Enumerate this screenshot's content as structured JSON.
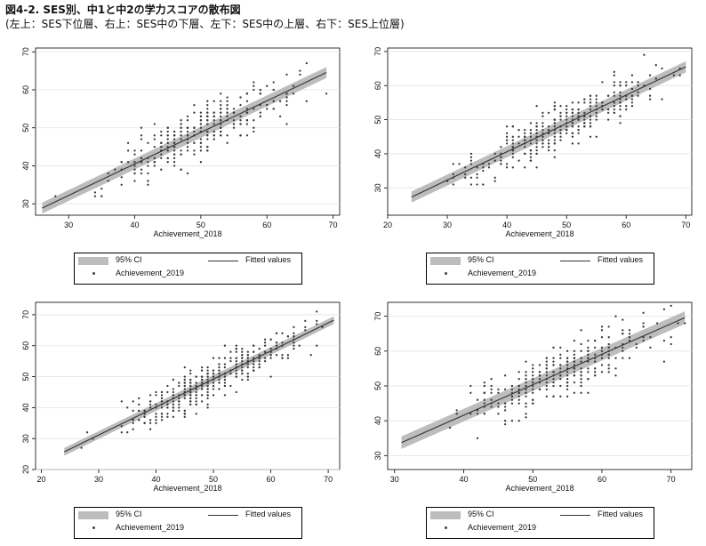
{
  "figure": {
    "title": "図4-2. SES別、中1と中2の学力スコアの散布図",
    "subtitle": "(左上：SES下位層、右上：SES中の下層、左下：SES中の上層、右下：SES上位層)"
  },
  "legend": {
    "ci_label": "95% CI",
    "fit_label": "Fitted values",
    "scatter_label": "Achievement_2019"
  },
  "colors": {
    "points": "#3a3a3a",
    "ci_band": "#bdbdbd",
    "fit_line": "#333333",
    "plot_bg": "#ffffff",
    "outer_bg": "#ffffff"
  },
  "chart_data": [
    {
      "id": "top-left",
      "type": "scatter",
      "xlabel": "Achievement_2018",
      "ylabel": "",
      "xlim": [
        25,
        71
      ],
      "ylim": [
        27,
        71
      ],
      "xticks": [
        30,
        40,
        50,
        60,
        70
      ],
      "yticks": [
        30,
        40,
        50,
        60,
        70
      ],
      "fit": {
        "x0": 26,
        "x1": 69,
        "slope": 0.83,
        "intercept": 7.3,
        "ci": 0.8
      },
      "n_points": 330,
      "noise": 3.4,
      "seed": 11,
      "points_xrange": [
        26,
        69
      ],
      "grid": true
    },
    {
      "id": "top-right",
      "type": "scatter",
      "xlabel": "Achievement_2018",
      "ylabel": "",
      "xlim": [
        20,
        71
      ],
      "ylim": [
        22,
        71
      ],
      "xticks": [
        20,
        30,
        40,
        50,
        60,
        70
      ],
      "yticks": [
        30,
        40,
        50,
        60,
        70
      ],
      "fit": {
        "x0": 24,
        "x1": 70,
        "slope": 0.83,
        "intercept": 7.4,
        "ci": 0.9
      },
      "n_points": 360,
      "noise": 3.6,
      "seed": 23,
      "points_xrange": [
        24,
        70
      ],
      "grid": true
    },
    {
      "id": "bottom-left",
      "type": "scatter",
      "xlabel": "Achievement_2018",
      "ylabel": "",
      "xlim": [
        19,
        72
      ],
      "ylim": [
        20,
        74
      ],
      "xticks": [
        20,
        30,
        40,
        50,
        60,
        70
      ],
      "yticks": [
        20,
        30,
        40,
        50,
        60,
        70
      ],
      "fit": {
        "x0": 24,
        "x1": 71,
        "slope": 0.905,
        "intercept": 4.0,
        "ci": 0.7
      },
      "n_points": 420,
      "noise": 3.3,
      "seed": 37,
      "points_xrange": [
        24,
        71
      ],
      "grid": true
    },
    {
      "id": "bottom-right",
      "type": "scatter",
      "xlabel": "Achievement_2018",
      "ylabel": "",
      "xlim": [
        29,
        73
      ],
      "ylim": [
        26,
        74
      ],
      "xticks": [
        30,
        40,
        50,
        60,
        70
      ],
      "yticks": [
        30,
        40,
        50,
        60,
        70
      ],
      "fit": {
        "x0": 31,
        "x1": 72,
        "slope": 0.875,
        "intercept": 6.6,
        "ci": 1.0
      },
      "n_points": 300,
      "noise": 3.8,
      "seed": 51,
      "points_xrange": [
        31,
        72
      ],
      "grid": true
    }
  ]
}
